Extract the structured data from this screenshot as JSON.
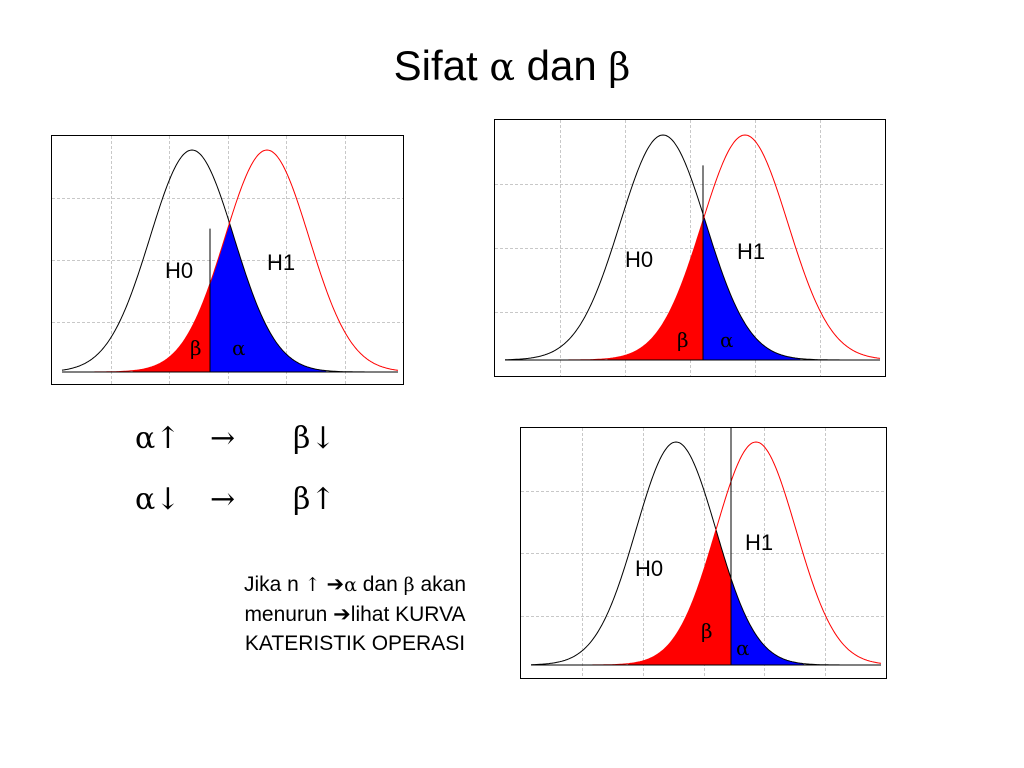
{
  "title": {
    "text": "Sifat",
    "alpha": "α",
    "middle": "dan",
    "beta": "β"
  },
  "charts": [
    {
      "h0": "H0",
      "h1": "H1",
      "beta": "β",
      "alpha": "α"
    },
    {
      "h0": "H0",
      "h1": "H1",
      "beta": "β",
      "alpha": "α"
    },
    {
      "h0": "H0",
      "h1": "H1",
      "beta": "β",
      "alpha": "α"
    }
  ],
  "relations": [
    {
      "left": "α↑",
      "arrow": "→",
      "right": "β↓"
    },
    {
      "left": "α↓",
      "arrow": "→",
      "right": "β↑"
    }
  ],
  "note": {
    "line1_a": "Jika n",
    "line1_up": "↑",
    "line1_arrow": "➔",
    "line1_alpha": "α",
    "line1_dan": "dan",
    "line1_beta": "β",
    "line1_b": "akan",
    "line2_a": "menurun",
    "line2_arrow": "➔",
    "line2_b": "lihat KURVA",
    "line3": "KATERISTIK OPERASI"
  },
  "colors": {
    "beta_fill": "#ff0000",
    "alpha_fill": "#0000ff",
    "h0_curve": "#000000",
    "h1_curve": "#ff0000"
  }
}
